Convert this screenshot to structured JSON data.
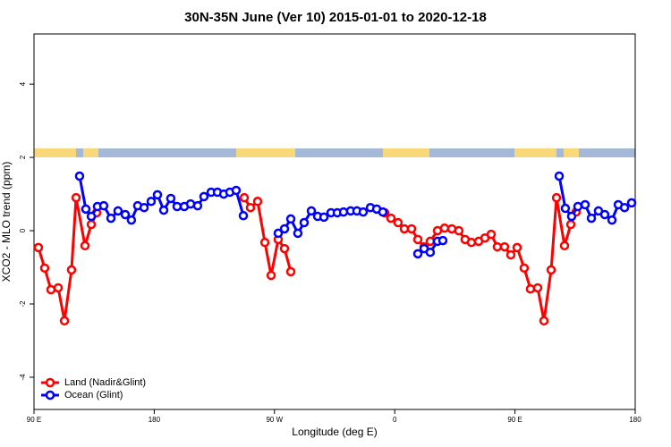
{
  "chart_data": {
    "type": "line",
    "title": "30N-35N June (Ver 10)   2015-01-01 to 2020-12-18",
    "x_label": "Longitude (deg E)",
    "y_label": "XCO2 - MLO trend (ppm)",
    "xlim": [
      90,
      540
    ],
    "xticks": [
      {
        "value": 90,
        "label": "90 E"
      },
      180,
      {
        "value": 270,
        "label": "90 W"
      },
      {
        "value": 360,
        "label": "0"
      },
      {
        "value": 450,
        "label": "90 E"
      },
      {
        "value": 540,
        "label": "180"
      }
    ],
    "ylim": [
      -4.88,
      5.37
    ],
    "yticks": [
      -4,
      -2,
      0,
      2,
      4
    ],
    "legend": "bottom-left",
    "series": [
      {
        "name": "Land (Nadir&Glint)",
        "color": "#ff0000",
        "x": [
          93.3,
          98.0,
          102.7,
          108.1,
          112.8,
          118.1,
          121.5,
          128.2,
          132.9,
          136.9,
          140,
          247.4,
          252.0,
          257.4,
          262.8,
          267.5,
          272.8,
          277.5,
          282.2,
          300,
          352.5,
          357.2,
          362.5,
          367.2,
          372.6,
          377.3,
          382.0,
          386.6,
          392.0,
          397.3,
          402.7,
          408.0,
          412.7,
          417.4,
          422.8,
          427.5,
          432.2,
          436.8,
          442.2,
          446.9,
          451.6,
          456.9,
          461.6,
          467.0,
          471.7,
          477.1,
          481.1,
          487.1,
          491.8,
          495.8
        ],
        "values": [
          -0.46,
          -1.02,
          -1.61,
          -1.56,
          -2.46,
          -1.07,
          0.9,
          -0.41,
          0.17,
          0.49,
          null,
          0.9,
          0.63,
          0.8,
          -0.32,
          -1.22,
          -0.24,
          -0.49,
          -1.12,
          null,
          0.49,
          0.34,
          0.22,
          0.05,
          0.05,
          -0.24,
          -0.44,
          -0.29,
          0.0,
          0.07,
          0.05,
          0.0,
          -0.24,
          -0.32,
          -0.29,
          -0.2,
          -0.1,
          -0.44,
          -0.44,
          -0.66,
          -0.46,
          -1.02,
          -1.59,
          -1.56,
          -2.46,
          -1.07,
          0.9,
          -0.41,
          0.17,
          0.51
        ]
      },
      {
        "name": "Ocean (Glint)",
        "color": "#0000ff",
        "x": [
          124.1,
          128.8,
          132.9,
          137.5,
          142.2,
          147.6,
          152.9,
          158.3,
          162.9,
          167.6,
          172.4,
          177.7,
          182.4,
          187.1,
          192.4,
          197.1,
          202.5,
          207.2,
          212.5,
          217.2,
          222.6,
          227.3,
          232.0,
          236.6,
          241.3,
          246.7,
          290,
          272.8,
          277.5,
          282.2,
          287.5,
          292.2,
          297.6,
          302.3,
          307.0,
          312.3,
          317.0,
          321.7,
          327.0,
          331.7,
          336.4,
          341.8,
          346.5,
          351.1,
          360,
          377.3,
          382.0,
          386.6,
          392.0,
          396.0,
          450,
          483.1,
          487.7,
          492.4,
          497.1,
          502.5,
          507.2,
          512.5,
          517.2,
          522.6,
          527.3,
          532.0,
          537.3
        ],
        "values": [
          1.49,
          0.59,
          0.39,
          0.66,
          0.68,
          0.34,
          0.54,
          0.44,
          0.29,
          0.68,
          0.63,
          0.8,
          0.98,
          0.56,
          0.88,
          0.66,
          0.66,
          0.73,
          0.68,
          0.93,
          1.05,
          1.05,
          1.0,
          1.05,
          1.1,
          0.41,
          null,
          -0.07,
          0.05,
          0.32,
          -0.07,
          0.22,
          0.54,
          0.39,
          0.37,
          0.49,
          0.49,
          0.51,
          0.54,
          0.54,
          0.51,
          0.63,
          0.59,
          0.51,
          null,
          -0.63,
          -0.49,
          -0.59,
          -0.29,
          -0.27,
          null,
          1.49,
          0.61,
          0.39,
          0.66,
          0.71,
          0.34,
          0.54,
          0.44,
          0.29,
          0.71,
          0.63,
          0.76
        ]
      }
    ]
  }
}
